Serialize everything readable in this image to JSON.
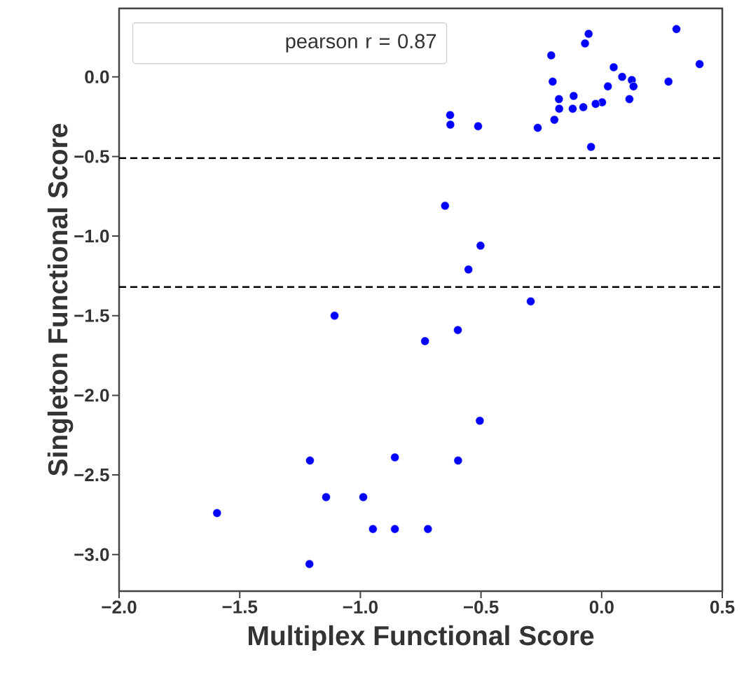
{
  "chart_data": {
    "type": "scatter",
    "xlabel": "Multiplex Functional Score",
    "ylabel": "Singleton Functional Score",
    "annotations": [
      "pearson r = 0.87"
    ],
    "x": [
      0.31,
      -0.054,
      -0.069,
      -0.209,
      0.406,
      0.05,
      0.085,
      0.125,
      -0.203,
      0.277,
      0.132,
      0.026,
      -0.177,
      -0.116,
      0.115,
      0.002,
      -0.025,
      -0.076,
      -0.176,
      -0.12,
      -0.196,
      -0.265,
      -0.044,
      -0.628,
      -0.627,
      -0.512,
      -0.649,
      -0.502,
      -0.552,
      -0.294,
      -0.596,
      -0.732,
      -1.107,
      -0.505,
      -0.857,
      -0.595,
      -0.857,
      -0.72,
      -1.209,
      -1.142,
      -0.988,
      -1.594,
      -0.948,
      -1.211
    ],
    "values": [
      0.3,
      0.27,
      0.21,
      0.135,
      0.08,
      0.06,
      0.0,
      -0.02,
      -0.03,
      -0.03,
      -0.06,
      -0.06,
      -0.14,
      -0.12,
      -0.14,
      -0.16,
      -0.17,
      -0.19,
      -0.2,
      -0.2,
      -0.27,
      -0.32,
      -0.44,
      -0.24,
      -0.3,
      -0.31,
      -0.81,
      -1.06,
      -1.21,
      -1.41,
      -1.59,
      -1.66,
      -1.5,
      -2.16,
      -2.39,
      -2.41,
      -2.84,
      -2.84,
      -2.41,
      -2.64,
      -2.64,
      -2.74,
      -2.84,
      -3.06
    ],
    "color": "#0000ff",
    "marker": "circle",
    "xlim": [
      -2.0,
      0.5
    ],
    "ylim": [
      -3.23,
      0.43
    ],
    "xticks": [
      {
        "value": -2.0,
        "label": "−2.0"
      },
      {
        "value": -1.5,
        "label": "−1.5"
      },
      {
        "value": -1.0,
        "label": "−1.0"
      },
      {
        "value": -0.5,
        "label": "−0.5"
      },
      {
        "value": 0.0,
        "label": "0.0"
      },
      {
        "value": 0.5,
        "label": "0.5"
      }
    ],
    "yticks": [
      {
        "value": 0.0,
        "label": "0.0"
      },
      {
        "value": -0.5,
        "label": "−0.5"
      },
      {
        "value": -1.0,
        "label": "−1.0"
      },
      {
        "value": -1.5,
        "label": "−1.5"
      },
      {
        "value": -2.0,
        "label": "−2.0"
      },
      {
        "value": -2.5,
        "label": "−2.5"
      },
      {
        "value": -3.0,
        "label": "−3.0"
      }
    ],
    "ref_lines": [
      {
        "axis": "y",
        "value": -0.51,
        "color": "#000000",
        "line_style": "dashed"
      },
      {
        "axis": "y",
        "value": -1.32,
        "color": "#000000",
        "line_style": "dashed"
      }
    ],
    "grid": false
  }
}
